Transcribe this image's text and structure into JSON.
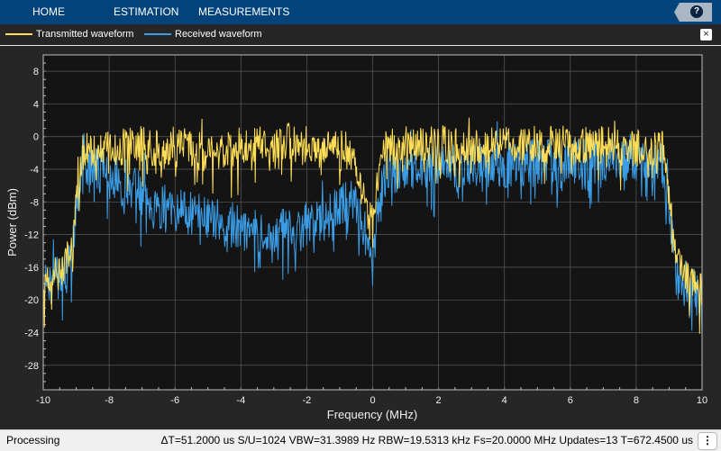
{
  "toolstrip": {
    "tabs": [
      {
        "label": "HOME"
      },
      {
        "label": "ESTIMATION"
      },
      {
        "label": "MEASUREMENTS"
      }
    ],
    "help_label": "?"
  },
  "legend": {
    "close_label": "×"
  },
  "colors": {
    "toolstrip": "#01437a",
    "background": "#262626",
    "axes_bg": "#141414",
    "grid": "#5a5a5a",
    "transmitted": "#ffde57",
    "received": "#3a9de6"
  },
  "statusbar": {
    "state": "Processing",
    "readout": "ΔT=51.2000 us  S/U=1024  VBW=31.3989 Hz  RBW=19.5313 kHz  Fs=20.0000 MHz  Updates=13  T=672.4500 us",
    "menu_icon": "⋮"
  },
  "chart_data": {
    "type": "line",
    "xlabel": "Frequency (MHz)",
    "ylabel": "Power (dBm)",
    "xlim": [
      -10,
      10
    ],
    "ylim": [
      -31,
      10
    ],
    "xticks": [
      -10,
      -8,
      -6,
      -4,
      -2,
      0,
      2,
      4,
      6,
      8,
      10
    ],
    "yticks": [
      8,
      4,
      0,
      -4,
      -8,
      -12,
      -16,
      -20,
      -24,
      -28
    ],
    "grid": true,
    "legend_position": "top-left",
    "series": [
      {
        "name": "Transmitted waveform",
        "color": "#ffde57",
        "points": [
          [
            -10,
            -17
          ],
          [
            -9.6,
            -16
          ],
          [
            -9.3,
            -15
          ],
          [
            -9.1,
            -12
          ],
          [
            -9.0,
            -6
          ],
          [
            -8.8,
            -1
          ],
          [
            -8.5,
            -1
          ],
          [
            -8,
            -1
          ],
          [
            -7.5,
            -0.5
          ],
          [
            -7,
            -0.5
          ],
          [
            -6.5,
            -1
          ],
          [
            -6,
            -0.5
          ],
          [
            -5.5,
            -1
          ],
          [
            -5,
            -0.5
          ],
          [
            -4.5,
            -1
          ],
          [
            -4,
            -0.5
          ],
          [
            -3.5,
            -0.5
          ],
          [
            -3,
            -0.5
          ],
          [
            -2.5,
            0
          ],
          [
            -2,
            -0.5
          ],
          [
            -1.5,
            -1
          ],
          [
            -1,
            -1
          ],
          [
            -0.6,
            -1.5
          ],
          [
            -0.3,
            -5
          ],
          [
            -0.1,
            -8
          ],
          [
            0,
            -9.5
          ],
          [
            0.15,
            -5
          ],
          [
            0.4,
            -1
          ],
          [
            1,
            -0.5
          ],
          [
            2,
            -0.5
          ],
          [
            3,
            -0.5
          ],
          [
            4,
            -0.5
          ],
          [
            5,
            -0.5
          ],
          [
            6,
            -0.5
          ],
          [
            7,
            -0.5
          ],
          [
            8,
            -1
          ],
          [
            8.8,
            -1
          ],
          [
            8.95,
            -5
          ],
          [
            9.1,
            -11
          ],
          [
            9.3,
            -15
          ],
          [
            9.6,
            -17
          ],
          [
            10,
            -18
          ]
        ]
      },
      {
        "name": "Received waveform",
        "color": "#3a9de6",
        "points": [
          [
            -10,
            -18
          ],
          [
            -9.6,
            -17
          ],
          [
            -9.3,
            -16
          ],
          [
            -9.1,
            -13
          ],
          [
            -9.0,
            -8
          ],
          [
            -8.8,
            -2.5
          ],
          [
            -8.5,
            -3
          ],
          [
            -8,
            -4
          ],
          [
            -7.5,
            -5
          ],
          [
            -7,
            -6.5
          ],
          [
            -6.5,
            -8
          ],
          [
            -6,
            -8.5
          ],
          [
            -5.5,
            -9
          ],
          [
            -5,
            -9.5
          ],
          [
            -4.5,
            -10
          ],
          [
            -4,
            -10.5
          ],
          [
            -3.5,
            -11
          ],
          [
            -3,
            -11
          ],
          [
            -2.5,
            -11
          ],
          [
            -2,
            -10.5
          ],
          [
            -1.5,
            -9.5
          ],
          [
            -1,
            -8
          ],
          [
            -0.6,
            -7
          ],
          [
            -0.3,
            -10
          ],
          [
            -0.1,
            -13
          ],
          [
            0,
            -15
          ],
          [
            0.15,
            -9
          ],
          [
            0.4,
            -4
          ],
          [
            1,
            -3.5
          ],
          [
            2,
            -3
          ],
          [
            3,
            -3
          ],
          [
            4,
            -3
          ],
          [
            5,
            -2.5
          ],
          [
            6,
            -2.5
          ],
          [
            7,
            -2.5
          ],
          [
            8,
            -2.5
          ],
          [
            8.8,
            -3
          ],
          [
            8.95,
            -7
          ],
          [
            9.1,
            -12
          ],
          [
            9.3,
            -16
          ],
          [
            9.6,
            -18
          ],
          [
            10,
            -19
          ]
        ]
      }
    ]
  }
}
